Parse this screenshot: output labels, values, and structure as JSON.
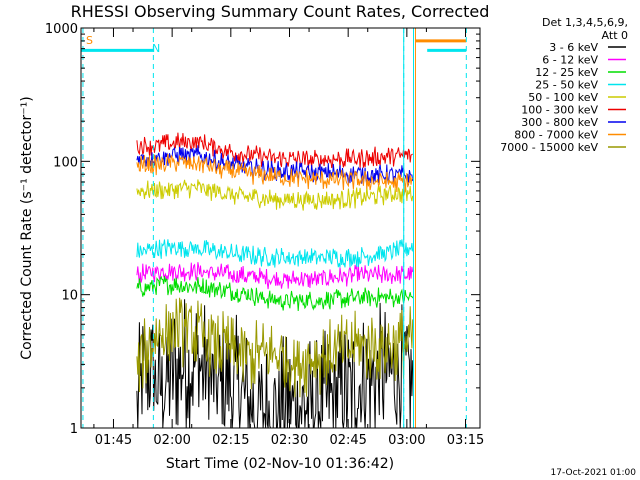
{
  "chart_data": {
    "type": "line",
    "title": "RHESSI Observing Summary Count Rates, Corrected",
    "xlabel": "Start Time (02-Nov-10 01:36:42)",
    "ylabel": "Corrected Count Rate (s⁻¹ detector⁻¹)",
    "y_scale": "log",
    "ylim": [
      1,
      1000
    ],
    "y_ticks": [
      "1",
      "10",
      "100",
      "1000"
    ],
    "x_unit": "minutes after 01:36:42",
    "xlim": [
      0,
      102
    ],
    "x_ticks": [
      {
        "label": "01:45",
        "value": 8.3
      },
      {
        "label": "02:00",
        "value": 23.3
      },
      {
        "label": "02:15",
        "value": 38.3
      },
      {
        "label": "02:30",
        "value": 53.3
      },
      {
        "label": "02:45",
        "value": 68.3
      },
      {
        "label": "03:00",
        "value": 83.3
      },
      {
        "label": "03:15",
        "value": 98.3
      }
    ],
    "grid": false,
    "legend_placement": "right",
    "legend_header": [
      "Det 1,3,4,5,6,9,",
      "Att 0"
    ],
    "series": [
      {
        "name": "3 - 6 keV",
        "color": "#000000",
        "noise": 0.55,
        "points": [
          [
            14.3,
            1.5
          ],
          [
            17,
            3
          ],
          [
            20,
            2
          ],
          [
            25,
            3
          ],
          [
            30,
            3
          ],
          [
            35,
            2
          ],
          [
            40,
            2
          ],
          [
            45,
            1.3
          ],
          [
            50,
            1.4
          ],
          [
            55,
            1.5
          ],
          [
            60,
            1.5
          ],
          [
            65,
            1.6
          ],
          [
            70,
            2
          ],
          [
            75,
            2.5
          ],
          [
            80,
            2.5
          ],
          [
            84.8,
            2.5
          ]
        ]
      },
      {
        "name": "6 - 12 keV",
        "color": "#ff00ff",
        "points": [
          [
            14.3,
            14
          ],
          [
            20,
            15
          ],
          [
            30,
            15
          ],
          [
            40,
            14
          ],
          [
            50,
            13
          ],
          [
            60,
            13
          ],
          [
            70,
            14
          ],
          [
            80,
            14
          ],
          [
            84.8,
            14
          ]
        ]
      },
      {
        "name": "12 - 25 keV",
        "color": "#00dd00",
        "points": [
          [
            14.3,
            11
          ],
          [
            20,
            12
          ],
          [
            30,
            11.5
          ],
          [
            40,
            10.5
          ],
          [
            50,
            9
          ],
          [
            60,
            9
          ],
          [
            70,
            9.5
          ],
          [
            80,
            9.5
          ],
          [
            84.8,
            9.5
          ]
        ]
      },
      {
        "name": "25 - 50 keV",
        "color": "#00e5ee",
        "points": [
          [
            14.3,
            21
          ],
          [
            20,
            22
          ],
          [
            25,
            23
          ],
          [
            30,
            22
          ],
          [
            40,
            20
          ],
          [
            50,
            19
          ],
          [
            60,
            19
          ],
          [
            70,
            19
          ],
          [
            80,
            21
          ],
          [
            84.8,
            23
          ]
        ]
      },
      {
        "name": "50 - 100 keV",
        "color": "#cccc00",
        "points": [
          [
            14.3,
            60
          ],
          [
            20,
            61
          ],
          [
            25,
            63
          ],
          [
            30,
            63
          ],
          [
            40,
            55
          ],
          [
            50,
            52
          ],
          [
            60,
            51
          ],
          [
            70,
            53
          ],
          [
            80,
            57
          ],
          [
            84.8,
            58
          ]
        ]
      },
      {
        "name": "100 - 300 keV",
        "color": "#ee0000",
        "points": [
          [
            14.3,
            130
          ],
          [
            20,
            132
          ],
          [
            25,
            138
          ],
          [
            30,
            140
          ],
          [
            35,
            125
          ],
          [
            40,
            115
          ],
          [
            50,
            105
          ],
          [
            60,
            102
          ],
          [
            70,
            105
          ],
          [
            80,
            110
          ],
          [
            84.8,
            110
          ]
        ]
      },
      {
        "name": "300 - 800 keV",
        "color": "#0000ee",
        "points": [
          [
            14.3,
            105
          ],
          [
            20,
            108
          ],
          [
            25,
            112
          ],
          [
            30,
            110
          ],
          [
            35,
            100
          ],
          [
            40,
            92
          ],
          [
            50,
            84
          ],
          [
            60,
            82
          ],
          [
            70,
            81
          ],
          [
            80,
            79
          ],
          [
            84.8,
            78
          ]
        ]
      },
      {
        "name": "800 - 7000 keV",
        "color": "#ff8c00",
        "points": [
          [
            14.3,
            92
          ],
          [
            20,
            95
          ],
          [
            25,
            98
          ],
          [
            30,
            98
          ],
          [
            35,
            88
          ],
          [
            40,
            82
          ],
          [
            50,
            76
          ],
          [
            60,
            73
          ],
          [
            70,
            72
          ],
          [
            80,
            70
          ],
          [
            84.8,
            70
          ]
        ]
      },
      {
        "name": "7000 - 15000 keV",
        "color": "#999900",
        "noise": 0.28,
        "points": [
          [
            14.3,
            3
          ],
          [
            17,
            4
          ],
          [
            20,
            5
          ],
          [
            25,
            5.5
          ],
          [
            30,
            5
          ],
          [
            40,
            3.5
          ],
          [
            50,
            3.5
          ],
          [
            55,
            3.2
          ],
          [
            60,
            3.3
          ],
          [
            70,
            4
          ],
          [
            80,
            4.2
          ],
          [
            84.8,
            4.5
          ]
        ]
      }
    ],
    "flags": [
      {
        "label": "S",
        "color": "#ff8c00",
        "segments": [
          {
            "x0": 85.5,
            "x1": 98.5,
            "y": 800
          }
        ],
        "verticals": [
          85.5
        ]
      },
      {
        "label": "N",
        "color": "#00e5ee",
        "segments": [
          {
            "x0": 0,
            "x1": 18.5,
            "y": 680
          },
          {
            "x0": 88.5,
            "x1": 98.5,
            "y": 680
          }
        ],
        "verticals": [
          82.5,
          85
        ]
      },
      {
        "label": "",
        "color": "#00e5ee",
        "dashed": true,
        "segments": [],
        "verticals": [
          0.5,
          18.5,
          82.5,
          98.5
        ]
      }
    ]
  },
  "footer_date": "17-Oct-2021 01:00"
}
